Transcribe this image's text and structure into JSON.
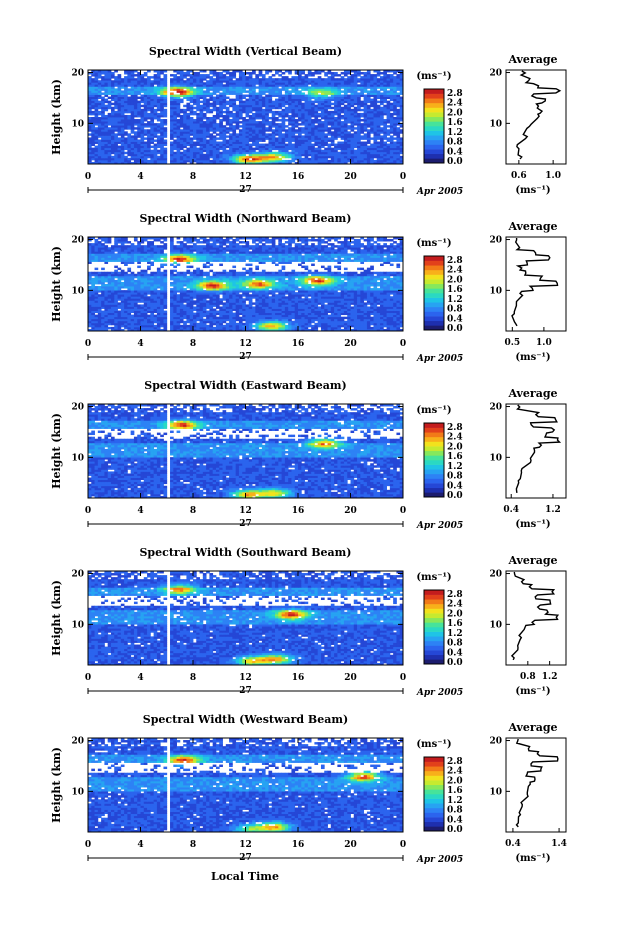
{
  "figure": {
    "xlabel": "Local Time",
    "day_label": "27",
    "month_label": "Apr 2005",
    "avg_title": "Average",
    "colorbar_unit": "(ms⁻¹)",
    "avg_xlabel": "(ms⁻¹)",
    "ylabel": "Height (km)",
    "time_ticks": [
      0,
      4,
      8,
      12,
      16,
      20,
      0
    ],
    "height_ticks": [
      10,
      20
    ],
    "colorbar_ticks": [
      "2.8",
      "2.4",
      "2.0",
      "1.6",
      "1.2",
      "0.8",
      "0.4",
      "0.0"
    ],
    "colorscale": [
      "#1c1c6e",
      "#1e2fae",
      "#2547d6",
      "#2b64ee",
      "#2d82f5",
      "#27a3f2",
      "#1fc4e6",
      "#2ad9c3",
      "#46e39b",
      "#86e85c",
      "#c6ea2f",
      "#f2e21d",
      "#f8b01a",
      "#f27a18",
      "#e2401b",
      "#c41c1d"
    ]
  },
  "chart_data": [
    {
      "type": "heatmap",
      "title": "Spectral Width (Vertical Beam)",
      "ylim": [
        2,
        20.5
      ],
      "xlim": [
        0,
        24
      ],
      "clim": [
        0,
        3.0
      ],
      "hot_spots": [
        {
          "t": 6.8,
          "h": 16.2,
          "v": 2.8
        },
        {
          "t": 12.3,
          "h": 3.0,
          "v": 2.6
        },
        {
          "t": 14.2,
          "h": 3.4,
          "v": 2.2
        },
        {
          "t": 17.8,
          "h": 16.0,
          "v": 1.6
        }
      ],
      "average": {
        "ticks": [
          "0.6",
          "1.0"
        ],
        "xlim": [
          0.45,
          1.15
        ],
        "heights": [
          3,
          5,
          7,
          9,
          11,
          12,
          13,
          14,
          15,
          16,
          17,
          18,
          19.5
        ],
        "values": [
          0.62,
          0.6,
          0.68,
          0.72,
          0.82,
          0.86,
          0.8,
          0.88,
          0.78,
          1.05,
          0.8,
          0.7,
          0.65
        ]
      }
    },
    {
      "type": "heatmap",
      "title": "Spectral Width (Northward Beam)",
      "ylim": [
        2,
        20.5
      ],
      "xlim": [
        0,
        24
      ],
      "clim": [
        0,
        3.0
      ],
      "hot_spots": [
        {
          "t": 7.0,
          "h": 16.2,
          "v": 2.4
        },
        {
          "t": 9.5,
          "h": 11.0,
          "v": 2.5
        },
        {
          "t": 13.0,
          "h": 11.3,
          "v": 2.3
        },
        {
          "t": 17.5,
          "h": 12.0,
          "v": 2.4
        },
        {
          "t": 14.0,
          "h": 3.0,
          "v": 2.3
        }
      ],
      "average": {
        "ticks": [
          "0.5",
          "1.0"
        ],
        "xlim": [
          0.4,
          1.35
        ],
        "heights": [
          3,
          5,
          7,
          9,
          10,
          11,
          12,
          13,
          14,
          15,
          16,
          17,
          18,
          19.5
        ],
        "values": [
          0.55,
          0.52,
          0.58,
          0.65,
          0.8,
          1.2,
          0.95,
          0.7,
          0.62,
          0.72,
          1.1,
          0.85,
          0.6,
          0.55
        ]
      }
    },
    {
      "type": "heatmap",
      "title": "Spectral Width (Eastward Beam)",
      "ylim": [
        2,
        20.5
      ],
      "xlim": [
        0,
        24
      ],
      "clim": [
        0,
        3.0
      ],
      "hot_spots": [
        {
          "t": 7.2,
          "h": 16.4,
          "v": 2.4
        },
        {
          "t": 18.0,
          "h": 12.8,
          "v": 2.3
        },
        {
          "t": 12.2,
          "h": 2.7,
          "v": 2.3
        },
        {
          "t": 14.2,
          "h": 3.0,
          "v": 2.1
        }
      ],
      "average": {
        "ticks": [
          "0.4",
          "1.2"
        ],
        "xlim": [
          0.3,
          1.45
        ],
        "heights": [
          3,
          5,
          7,
          9,
          11,
          12,
          13,
          14,
          15,
          16,
          17,
          18,
          19.5
        ],
        "values": [
          0.5,
          0.55,
          0.6,
          0.75,
          0.85,
          0.95,
          1.3,
          1.05,
          1.2,
          0.8,
          1.25,
          0.9,
          0.55
        ]
      }
    },
    {
      "type": "heatmap",
      "title": "Spectral Width (Southward Beam)",
      "ylim": [
        2,
        20.5
      ],
      "xlim": [
        0,
        24
      ],
      "clim": [
        0,
        3.0
      ],
      "hot_spots": [
        {
          "t": 7.0,
          "h": 17.0,
          "v": 2.2
        },
        {
          "t": 15.5,
          "h": 12.0,
          "v": 2.5
        },
        {
          "t": 12.5,
          "h": 2.8,
          "v": 2.1
        },
        {
          "t": 14.3,
          "h": 3.2,
          "v": 2.3
        }
      ],
      "average": {
        "ticks": [
          "0.8",
          "1.2"
        ],
        "xlim": [
          0.4,
          1.5
        ],
        "heights": [
          3,
          5,
          7,
          9,
          10,
          11,
          12,
          13,
          14,
          15,
          16,
          17,
          18,
          19.5
        ],
        "values": [
          0.52,
          0.6,
          0.65,
          0.75,
          0.9,
          1.35,
          1.15,
          1.0,
          1.2,
          0.95,
          1.25,
          0.85,
          0.7,
          0.55
        ]
      }
    },
    {
      "type": "heatmap",
      "title": "Spectral Width (Westward Beam)",
      "ylim": [
        2,
        20.5
      ],
      "xlim": [
        0,
        24
      ],
      "clim": [
        0,
        3.0
      ],
      "hot_spots": [
        {
          "t": 7.3,
          "h": 16.2,
          "v": 2.4
        },
        {
          "t": 21.0,
          "h": 13.0,
          "v": 2.5
        },
        {
          "t": 14.2,
          "h": 3.0,
          "v": 2.3
        },
        {
          "t": 12.4,
          "h": 2.6,
          "v": 1.6
        }
      ],
      "average": {
        "ticks": [
          "0.4",
          "1.4"
        ],
        "xlim": [
          0.25,
          1.55
        ],
        "heights": [
          3,
          5,
          7,
          9,
          11,
          12,
          13,
          14,
          15,
          16,
          17,
          18,
          19.5
        ],
        "values": [
          0.5,
          0.55,
          0.58,
          0.7,
          0.75,
          0.85,
          0.7,
          1.0,
          0.82,
          1.35,
          0.95,
          0.75,
          0.5
        ]
      }
    }
  ]
}
